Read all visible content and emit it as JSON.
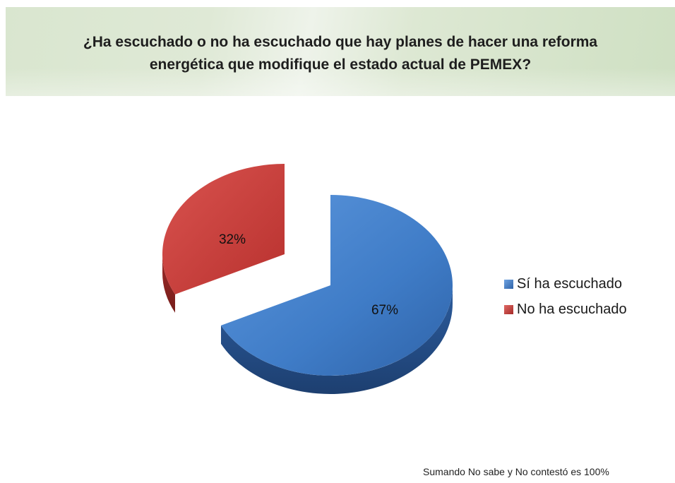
{
  "header": {
    "title": "¿Ha escuchado o no ha escuchado que hay planes de hacer una reforma energética que modifique el estado actual de PEMEX?"
  },
  "chart_data": {
    "type": "pie",
    "categories": [
      "Sí ha escuchado",
      "No ha escuchado"
    ],
    "values": [
      67,
      32
    ],
    "labels": [
      "67%",
      "32%"
    ],
    "colors": [
      "#3f7cc7",
      "#c83a36"
    ],
    "legend_position": "right",
    "exploded": true,
    "three_d": true
  },
  "legend": {
    "items": [
      {
        "label": "Sí ha escuchado",
        "color": "#3f7cc7"
      },
      {
        "label": "No ha escuchado",
        "color": "#c83a36"
      }
    ]
  },
  "footnote": "Sumando No sabe y No contestó es 100%"
}
